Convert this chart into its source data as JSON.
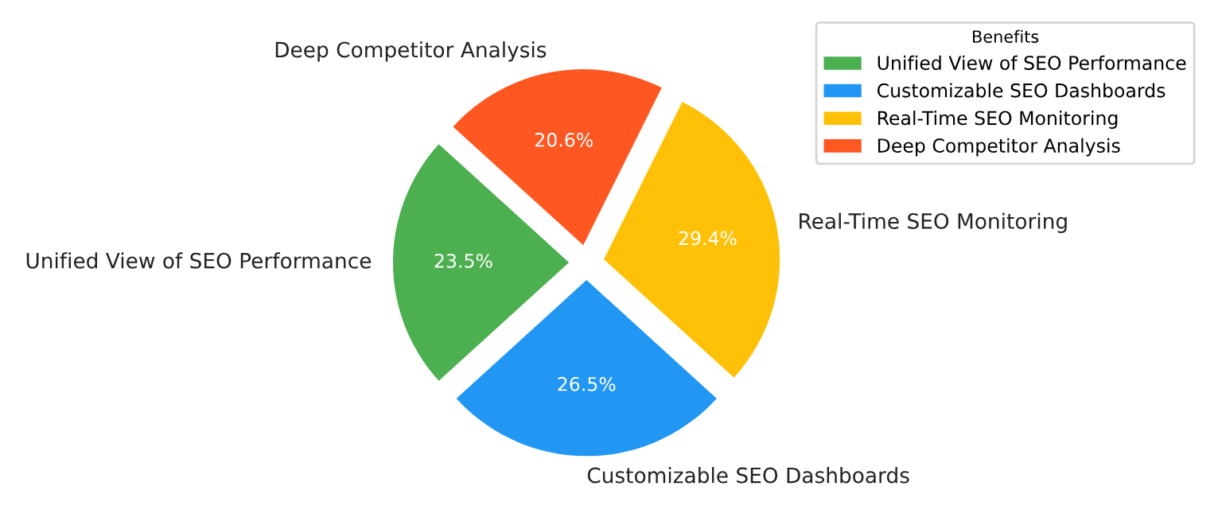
{
  "chart_data": {
    "type": "pie",
    "categories": [
      "Unified View of SEO Performance",
      "Customizable SEO Dashboards",
      "Real-Time SEO Monitoring",
      "Deep Competitor Analysis"
    ],
    "values": [
      23.5,
      26.5,
      29.4,
      20.6
    ],
    "colors": [
      "#4caf50",
      "#2196f3",
      "#ffc107",
      "#ff5722"
    ],
    "value_labels": [
      "23.5%",
      "26.5%",
      "29.4%",
      "20.6%"
    ],
    "legend_title": "Benefits",
    "legend": "top right"
  }
}
